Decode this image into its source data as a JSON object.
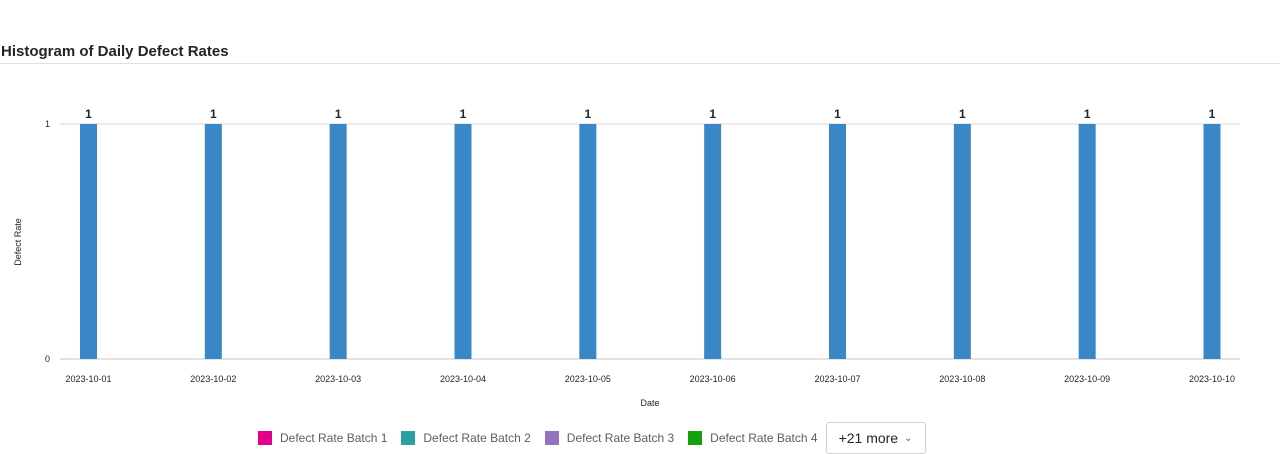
{
  "chart_data": {
    "type": "bar",
    "title": "Histogram of Daily Defect Rates",
    "xlabel": "Date",
    "ylabel": "Defect Rate",
    "categories": [
      "2023-10-01",
      "2023-10-02",
      "2023-10-03",
      "2023-10-04",
      "2023-10-05",
      "2023-10-06",
      "2023-10-07",
      "2023-10-08",
      "2023-10-09",
      "2023-10-10"
    ],
    "series": [
      {
        "name": "Defect Rate",
        "color": "#3a87c8",
        "values": [
          1,
          1,
          1,
          1,
          1,
          1,
          1,
          1,
          1,
          1
        ]
      }
    ],
    "ylim": [
      0,
      1
    ],
    "yticks": [
      "0",
      "1"
    ],
    "grid": true,
    "data_labels": true
  },
  "legend": {
    "items": [
      {
        "label": "Defect Rate Batch 1",
        "color": "#e3008c"
      },
      {
        "label": "Defect Rate Batch 2",
        "color": "#2aa0a4"
      },
      {
        "label": "Defect Rate Batch 3",
        "color": "#9373c0"
      },
      {
        "label": "Defect Rate Batch 4",
        "color": "#13a10e"
      }
    ],
    "more_label": "+21 more",
    "more_icon": "chevron-down-icon"
  }
}
